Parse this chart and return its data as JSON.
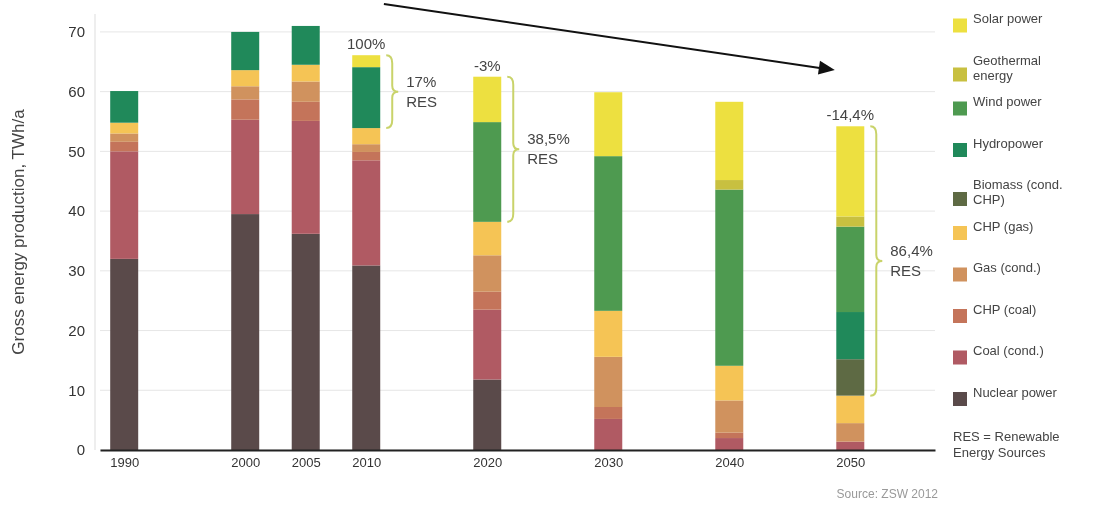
{
  "chart_data": {
    "type": "bar",
    "stacked": true,
    "ylabel": "Gross energy production, TWh/a",
    "x": [
      1990,
      2000,
      2005,
      2010,
      2020,
      2030,
      2040,
      2050
    ],
    "xlim": [
      1988,
      2057
    ],
    "xticks": [
      1990,
      2000,
      2005,
      2010,
      2020,
      2030,
      2040,
      2050
    ],
    "ylim": [
      0,
      73
    ],
    "yticks": [
      0,
      10,
      20,
      30,
      40,
      50,
      60,
      70
    ],
    "grid": "y",
    "legend": "right",
    "series": [
      {
        "name": "Nuclear power",
        "color": "#5a4a4a",
        "values": [
          32,
          39.5,
          36.2,
          30.9,
          11.8,
          0,
          0,
          0
        ]
      },
      {
        "name": "Coal (cond.)",
        "color": "#b05a63",
        "values": [
          18,
          15.8,
          18.9,
          17.6,
          11.7,
          5.2,
          2.0,
          1.4
        ]
      },
      {
        "name": "CHP (coal)",
        "color": "#c4745a",
        "values": [
          1.6,
          3.4,
          3.2,
          1.4,
          3.0,
          2.0,
          0.9,
          0
        ]
      },
      {
        "name": "Gas (cond.)",
        "color": "#d0925e",
        "values": [
          1.4,
          2.2,
          3.4,
          1.3,
          6.1,
          8.4,
          5.4,
          3.1
        ]
      },
      {
        "name": "CHP (gas)",
        "color": "#f5c455",
        "values": [
          1.8,
          2.7,
          2.8,
          2.7,
          5.6,
          7.7,
          5.8,
          4.6
        ]
      },
      {
        "name": "Biomass (cond. CHP)",
        "color": "#5e6a44",
        "values": [
          0,
          0,
          0,
          0,
          0,
          0,
          0,
          6.1
        ]
      },
      {
        "name": "Hydropower",
        "color": "#20895a",
        "values": [
          5.3,
          6.4,
          6.5,
          10.2,
          0,
          0,
          0,
          7.9
        ]
      },
      {
        "name": "Wind power",
        "color": "#4e9a50",
        "values": [
          0,
          0,
          0,
          0,
          16.7,
          25.9,
          29.5,
          14.3
        ]
      },
      {
        "name": "Geothermal energy",
        "color": "#c8c040",
        "values": [
          0,
          0,
          0,
          0,
          0,
          0,
          1.6,
          1.7
        ]
      },
      {
        "name": "Solar power",
        "color": "#ede040",
        "values": [
          0,
          0,
          0,
          2.0,
          7.6,
          10.7,
          13.1,
          15.1
        ]
      }
    ],
    "annotations": [
      {
        "text": "100%",
        "x": 2010,
        "y": 66.1
      },
      "17%\nRES",
      {
        "text": "-3%",
        "x": 2020,
        "y": 62.5
      },
      "38,5%\nRES",
      {
        "text": "-14,4%",
        "x": 2050,
        "y": 54.2
      },
      "86,4%\nRES",
      "RES = Renewable Energy Sources",
      "Source: ZSW 2012"
    ]
  }
}
